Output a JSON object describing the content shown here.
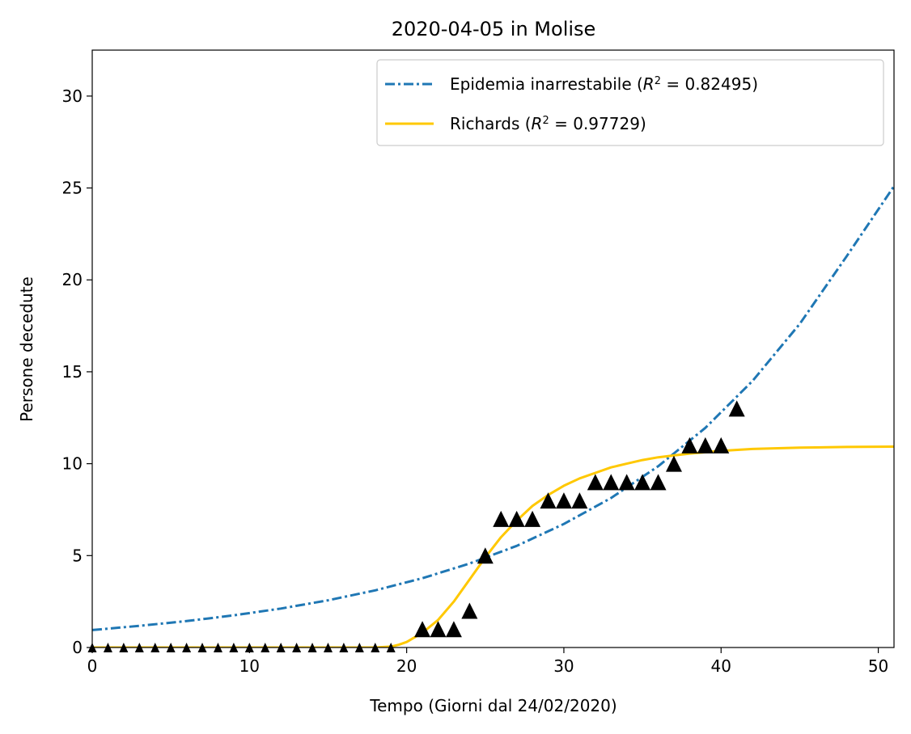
{
  "chart_data": {
    "type": "scatter",
    "title": "2020-04-05 in Molise",
    "xlabel": "Tempo (Giorni dal 24/02/2020)",
    "ylabel": "Persone decedute",
    "xlim": [
      0,
      51
    ],
    "ylim": [
      0,
      32.5
    ],
    "xticks": [
      0,
      10,
      20,
      30,
      40,
      50
    ],
    "yticks": [
      0,
      5,
      10,
      15,
      20,
      25,
      30
    ],
    "grid": false,
    "legend_position": "top-right",
    "observed": {
      "marker": "triangle",
      "color": "#000000",
      "x": [
        0,
        1,
        2,
        3,
        4,
        5,
        6,
        7,
        8,
        9,
        10,
        11,
        12,
        13,
        14,
        15,
        16,
        17,
        18,
        19,
        21,
        22,
        23,
        24,
        25,
        26,
        27,
        28,
        29,
        30,
        31,
        32,
        33,
        34,
        35,
        36,
        37,
        38,
        39,
        40,
        41
      ],
      "y": [
        0,
        0,
        0,
        0,
        0,
        0,
        0,
        0,
        0,
        0,
        0,
        0,
        0,
        0,
        0,
        0,
        0,
        0,
        0,
        0,
        1,
        1,
        1,
        2,
        5,
        7,
        7,
        7,
        8,
        8,
        8,
        9,
        9,
        9,
        9,
        9,
        10,
        11,
        11,
        11,
        13
      ]
    },
    "series": [
      {
        "name": "Epidemia inarrestabile",
        "r2_value": "0.82495",
        "style": "dashdot",
        "color": "#1f77b4",
        "x": [
          0,
          3,
          6,
          9,
          12,
          15,
          18,
          21,
          24,
          27,
          30,
          33,
          36,
          39,
          42,
          45,
          48,
          51
        ],
        "y": [
          0.95,
          1.18,
          1.44,
          1.75,
          2.12,
          2.57,
          3.11,
          3.77,
          4.57,
          5.53,
          6.72,
          8.13,
          9.86,
          11.95,
          14.5,
          17.6,
          21.3,
          25.1
        ]
      },
      {
        "name": "Richards",
        "r2_value": "0.97729",
        "style": "solid",
        "color": "#ffc800",
        "x": [
          0,
          18,
          19,
          19.5,
          20,
          21,
          22,
          23,
          24,
          25,
          26,
          27,
          28,
          29,
          30,
          31,
          32,
          33,
          34,
          35,
          36,
          37,
          38,
          40,
          42,
          45,
          48,
          51
        ],
        "y": [
          0,
          0,
          0.05,
          0.15,
          0.3,
          0.8,
          1.5,
          2.5,
          3.7,
          4.9,
          6.0,
          6.9,
          7.7,
          8.3,
          8.8,
          9.2,
          9.5,
          9.8,
          10.0,
          10.2,
          10.35,
          10.45,
          10.55,
          10.7,
          10.8,
          10.87,
          10.91,
          10.93
        ]
      }
    ]
  }
}
